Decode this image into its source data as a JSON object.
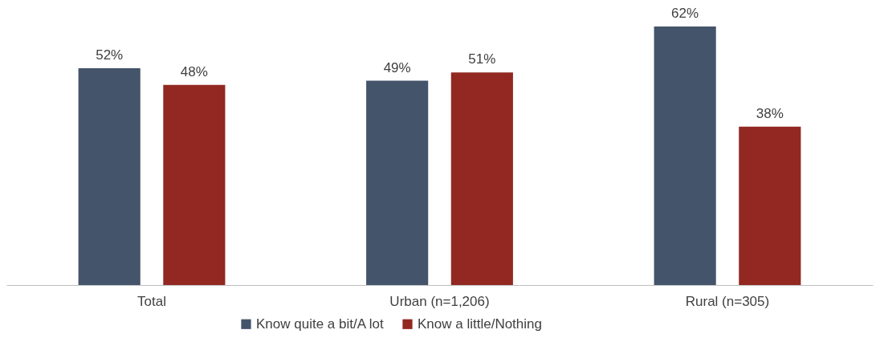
{
  "chart_data": {
    "type": "bar",
    "categories": [
      "Total",
      "Urban (n=1,206)",
      "Rural (n=305)"
    ],
    "series": [
      {
        "name": "Know quite a bit/A lot",
        "color": "#44546a",
        "values": [
          52,
          49,
          62
        ],
        "value_labels": [
          "52%",
          "49%",
          "62%"
        ]
      },
      {
        "name": "Know a little/Nothing",
        "color": "#922821",
        "values": [
          48,
          51,
          38
        ],
        "value_labels": [
          "48%",
          "51%",
          "38%"
        ]
      }
    ],
    "tick_labels": "x",
    "grid": false,
    "legend": "bottom"
  }
}
